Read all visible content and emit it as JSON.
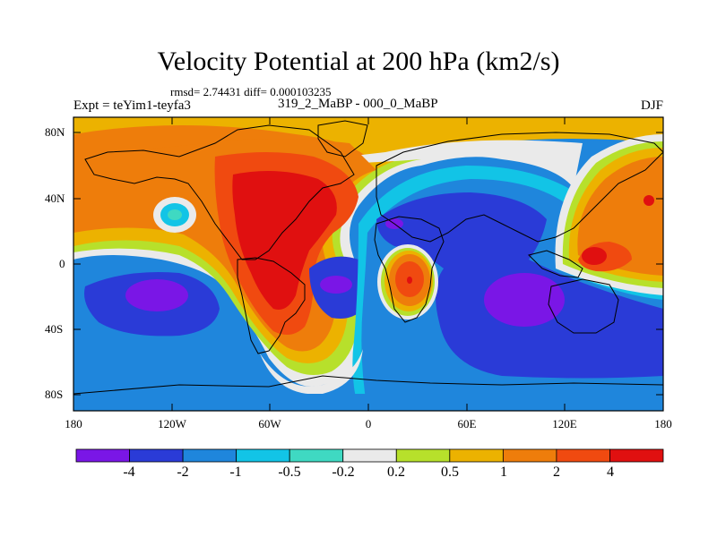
{
  "title": "Velocity Potential at 200 hPa (km2/s)",
  "stats": "rmsd= 2.74431 diff= 0.000103235",
  "experiment": "Expt = teYim1-teyfa3",
  "comparison": "319_2_MaBP - 000_0_MaBP",
  "season": "DJF",
  "axes": {
    "lat_ticks": [
      "80N",
      "40N",
      "0",
      "40S",
      "80S"
    ],
    "lon_ticks": [
      "180",
      "120W",
      "60W",
      "0",
      "60E",
      "120E",
      "180"
    ]
  },
  "colorbar": {
    "colors": [
      "#7a16e6",
      "#2a3bd7",
      "#1f86dc",
      "#12c4e6",
      "#3fd9c2",
      "#eaeaea",
      "#b7e02b",
      "#ecb200",
      "#ee7d0b",
      "#f04a10",
      "#e01010"
    ],
    "labels": [
      "-4",
      "-2",
      "-1",
      "-0.5",
      "-0.2",
      "0.2",
      "0.5",
      "1",
      "2",
      "4"
    ]
  }
}
